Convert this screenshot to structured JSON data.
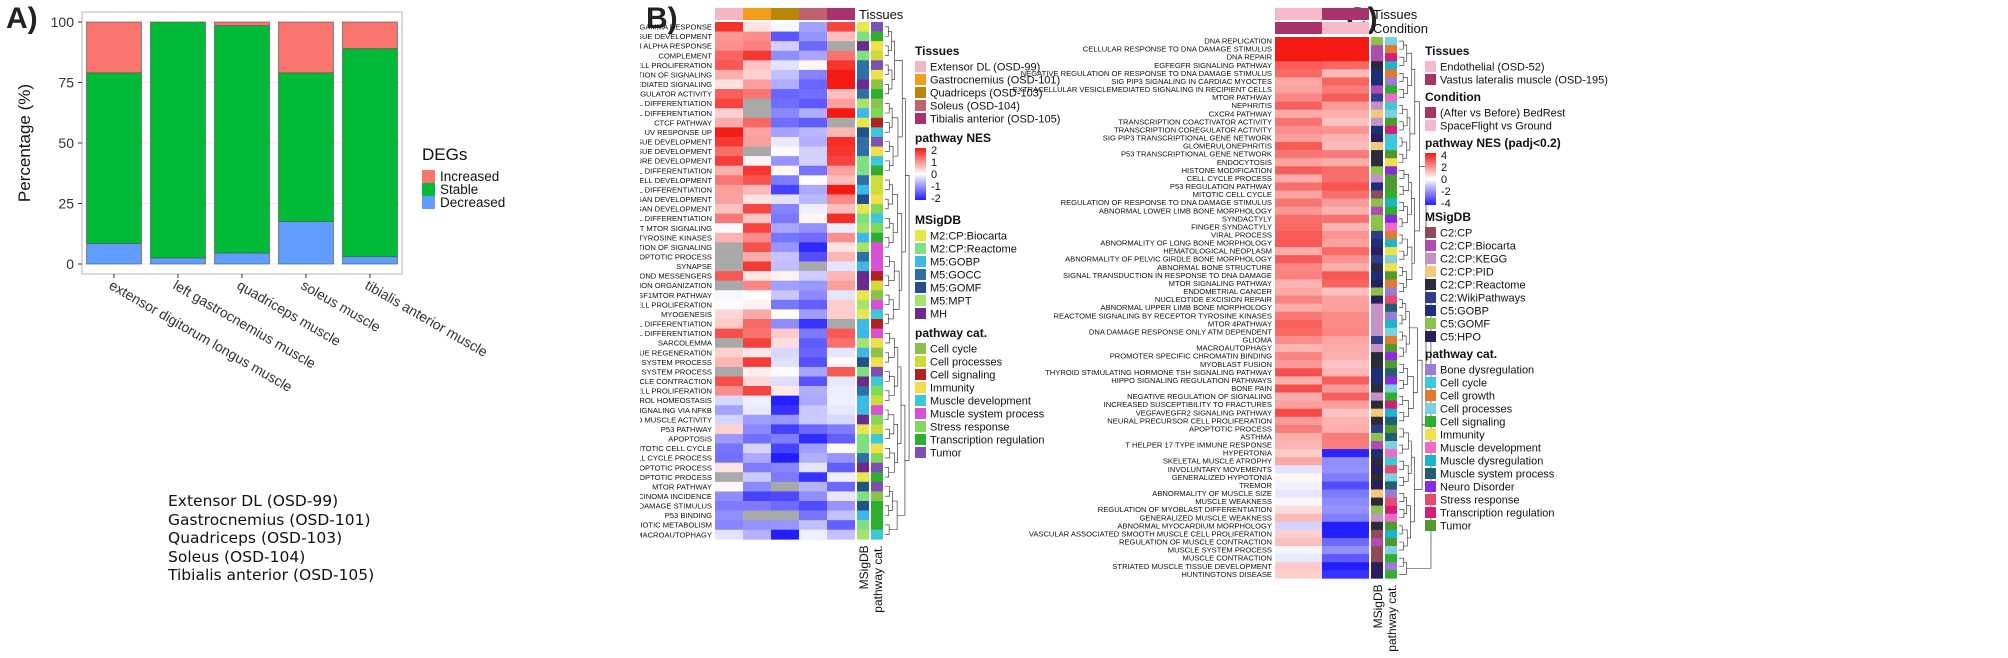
{
  "panels": {
    "a": "A)",
    "b": "B)",
    "c": "C)"
  },
  "colors": {
    "increased": "#F8766D",
    "stable": "#00BA38",
    "decreased": "#619CFF"
  },
  "chart_data": [
    {
      "type": "bar",
      "stacked": true,
      "ylabel": "Percentage (%)",
      "ylim": [
        0,
        100
      ],
      "yticks": [
        "0",
        "25",
        "50",
        "75",
        "100"
      ],
      "grid": true,
      "legend": {
        "title": "DEGs",
        "position": "right",
        "entries": [
          "Increased",
          "Stable",
          "Decreased"
        ]
      },
      "categories": [
        "extensor digitorum longus muscle",
        "left gastrocnemius muscle",
        "quadriceps muscle",
        "soleus muscle",
        "tibialis anterior muscle"
      ],
      "series": [
        {
          "name": "Decreased",
          "values": [
            8.5,
            2.5,
            4.5,
            17.5,
            3
          ]
        },
        {
          "name": "Stable",
          "values": [
            70.5,
            97.5,
            94,
            61.5,
            86
          ]
        },
        {
          "name": "Increased",
          "values": [
            21,
            0,
            1.5,
            21,
            11
          ]
        }
      ],
      "notes": [
        "Extensor DL (OSD-99)",
        "Gastrocnemius (OSD-101)",
        "Quadriceps (OSD-103)",
        "Soleus (OSD-104)",
        "Tibialis anterior (OSD-105)"
      ]
    },
    {
      "type": "heatmap",
      "annotation_label": "Tissues",
      "bottom_labels": [
        "MSigDB",
        "pathway cat."
      ],
      "rows": [
        "INTERFERON GAMMA RESPONSE",
        "REGULATION OF MUSCLE TISSUE DEVELOPMENT",
        "INTERFERON ALPHA RESPONSE",
        "COMPLEMENT",
        "VASCULAR ASSOCIATED SMOOTH MUSCLE CELL PROLIFERATION",
        "POSITIVE REGULATION OF SIGNALING",
        "CALCINEURIN MEDIATED SIGNALING",
        "TRANSCRIPTION COREGULATOR ACTIVITY",
        "REGULATION OF MUSCLE CELL DIFFERENTIATION",
        "REGULATION OF STRIATED MUSCLE CELL DIFFERENTIATION",
        "CTCF PATHWAY",
        "UV RESPONSE UP",
        "STRIATED MUSCLE TISSUE DEVELOPMENT",
        "MUSCLE TISSUE DEVELOPMENT",
        "MUSCLE STRUCTURE DEVELOPMENT",
        "MUSCLE CELL DIFFERENTIATION",
        "MUSCLE CELL DEVELOPMENT",
        "STRIATED MUSCLE CELL DIFFERENTIATION",
        "SKELETAL MUSCLE ORGAN DEVELOPMENT",
        "MUSCLE ORGAN DEVELOPMENT",
        "CARDIAC MUSCLE CELL DIFFERENTIATION",
        "PI3K AKT MTOR SIGNALING",
        "SIGNALING BY RECEPTOR TYROSINE KINASES",
        "NEGATIVE REGULATION OF SIGNALING",
        "APOPTOTIC PROCESS",
        "SYNAPSE",
        "INTRACELLULAR SIGNALING BY SECOND MESSENGERS",
        "MITOCHONDRION ORGANIZATION",
        "IGF1MTOR PATHWAY",
        "NEGATIVE REGULATION OF VASCULAR ASSOCIATED SMOOTH MUSCLE CELL PROLIFERATION",
        "MYOGENESIS",
        "POSITIVE REGULATION OF MUSCLE CELL DIFFERENTIATION",
        "POSITIVE REGULATION OF STRIATED MUSCLE CELL DIFFERENTIATION",
        "SARCOLEMMA",
        "SKELETAL MUSCLE TISSUE REGENERATION",
        "REGULATION OF MUSCLE SYSTEM PROCESS",
        "MUSCLE SYSTEM PROCESS",
        "MUSCLE CONTRACTION",
        "SMOOTH MUSCLE CELL PROLIFERATION",
        "CHOLESTEROL HOMEOSTASIS",
        "TNFA SIGNALING VIA NFKB",
        "RESPONSE TO MUSCLE ACTIVITY",
        "P53 PATHWAY",
        "APOPTOSIS",
        "MITOTIC CELL CYCLE",
        "CELL CYCLE PROCESS",
        "STRIATED MUSCLE CELL APOPTOTIC PROCESS",
        "MUSCLE CELL APOPTOTIC PROCESS",
        "MTOR PATHWAY",
        "MP INCREASED HEPATOCELLULAR CARCINOMA INCIDENCE",
        "POSITIVE REGULATION OF RESPONSE TO DNA DAMAGE STIMULUS",
        "P53 BINDING",
        "XENOBIOTIC METABOLISM",
        "MACROAUTOPHAGY"
      ],
      "legend": {
        "tissues_title": "Tissues",
        "tissues": [
          {
            "label": "Extensor DL (OSD-99)",
            "color": "#F4B6C2"
          },
          {
            "label": "Gastrocnemius (OSD-101)",
            "color": "#F29E1B"
          },
          {
            "label": "Quadriceps (OSD-103)",
            "color": "#B8860B"
          },
          {
            "label": "Soleus (OSD-104)",
            "color": "#C06070"
          },
          {
            "label": "Tibialis anterior (OSD-105)",
            "color": "#A8326A"
          }
        ],
        "nes_title": "pathway NES",
        "nes_ticks": [
          "2",
          "1",
          "0",
          "-1",
          "-2"
        ],
        "msigdb_title": "MSigDB",
        "msigdb": [
          {
            "label": "M2:CP:Biocarta",
            "color": "#E6E84A"
          },
          {
            "label": "M2:CP:Reactome",
            "color": "#7FE07F"
          },
          {
            "label": "M5:GOBP",
            "color": "#3DB9E8"
          },
          {
            "label": "M5:GOCC",
            "color": "#2F6FA8"
          },
          {
            "label": "M5:GOMF",
            "color": "#22508A"
          },
          {
            "label": "M5:MPT",
            "color": "#A6E36B"
          },
          {
            "label": "MH",
            "color": "#6B2A8E"
          }
        ],
        "cat_title": "pathway cat.",
        "cat": [
          {
            "label": "Cell cycle",
            "color": "#8BC34A"
          },
          {
            "label": "Cell processes",
            "color": "#CDDC39"
          },
          {
            "label": "Cell signaling",
            "color": "#B22222"
          },
          {
            "label": "Immunity",
            "color": "#F2E04B"
          },
          {
            "label": "Muscle development",
            "color": "#3CC8D6"
          },
          {
            "label": "Muscle system process",
            "color": "#D94FD6"
          },
          {
            "label": "Stress response",
            "color": "#7ED957"
          },
          {
            "label": "Transcription regulation",
            "color": "#2EAF2E"
          },
          {
            "label": "Tumor",
            "color": "#7E4FB5"
          }
        ]
      }
    },
    {
      "type": "heatmap",
      "annotation_labels": [
        "Tissues",
        "Condition"
      ],
      "bottom_labels": [
        "MSigDB",
        "pathway cat."
      ],
      "rows": [
        "DNA REPLICATION",
        "CELLULAR RESPONSE TO DNA DAMAGE STIMULUS",
        "DNA REPAIR",
        "EGFEGFR SIGNALING PATHWAY",
        "NEGATIVE REGULATION OF RESPONSE TO DNA DAMAGE STIMULUS",
        "SIG PIP3 SIGNALING IN CARDIAC MYOCTES",
        "EXTRACELLULAR VESICLEMEDIATED SIGNALING IN RECIPIENT CELLS",
        "MTOR PATHWAY",
        "NEPHRITIS",
        "CXCR4 PATHWAY",
        "TRANSCRIPTION COACTIVATOR ACTIVITY",
        "TRANSCRIPTION COREGULATOR ACTIVITY",
        "SIG PIP3 TRANSCRIPTIONAL GENE NETWORK",
        "GLOMERULONEPHRITIS",
        "P53 TRANSCRIPTIONAL GENE NETWORK",
        "ENDOCYTOSIS",
        "HISTONE MODIFICATION",
        "CELL CYCLE PROCESS",
        "P53 REGULATION PATHWAY",
        "MITOTIC CELL CYCLE",
        "REGULATION OF RESPONSE TO DNA DAMAGE STIMULUS",
        "ABNORMAL LOWER LIMB BONE MORPHOLOGY",
        "SYNDACTYLY",
        "FINGER SYNDACTYLY",
        "VIRAL PROCESS",
        "ABNORMALITY OF LONG BONE MORPHOLOGY",
        "HEMATOLOGICAL NEOPLASM",
        "ABNORMALITY OF PELVIC GIRDLE BONE MORPHOLOGY",
        "ABNORMAL BONE STRUCTURE",
        "SIGNAL TRANSDUCTION IN RESPONSE TO DNA DAMAGE",
        "MTOR SIGNALING PATHWAY",
        "ENDOMETRIAL CANCER",
        "NUCLEOTIDE EXCISION REPAIR",
        "ABNORMAL UPPER LIMB BONE MORPHOLOGY",
        "REACTOME SIGNALING BY RECEPTOR TYROSINE KINASES",
        "MTOR 4PATHWAY",
        "DNA DAMAGE RESPONSE ONLY ATM DEPENDENT",
        "GLIOMA",
        "MACROAUTOPHAGY",
        "PROMOTER SPECIFIC CHROMATIN BINDING",
        "MYOBLAST FUSION",
        "THYROID STIMULATING HORMONE TSH SIGNALING PATHWAY",
        "HIPPO SIGNALING REGULATION PATHWAYS",
        "BONE PAIN",
        "NEGATIVE REGULATION OF SIGNALING",
        "INCREASED SUSCEPTIBILITY TO FRACTURES",
        "VEGFAVEGFR2 SIGNALING PATHWAY",
        "NEURAL PRECURSOR CELL PROLIFERATION",
        "APOPTOTIC PROCESS",
        "ASTHMA",
        "T HELPER 17 TYPE IMMUNE RESPONSE",
        "HYPERTONIA",
        "SKELETAL MUSCLE ATROPHY",
        "INVOLUNTARY MOVEMENTS",
        "GENERALIZED HYPOTONIA",
        "TREMOR",
        "ABNORMALITY OF MUSCLE SIZE",
        "MUSCLE WEAKNESS",
        "REGULATION OF MYOBLAST DIFFERENTIATION",
        "GENERALIZED MUSCLE WEAKNESS",
        "ABNORMAL MYOCARDIUM MORPHOLOGY",
        "VASCULAR ASSOCIATED SMOOTH MUSCLE CELL PROLIFERATION",
        "REGULATION OF MUSCLE CONTRACTION",
        "MUSCLE SYSTEM PROCESS",
        "MUSCLE CONTRACTION",
        "STRIATED MUSCLE TISSUE DEVELOPMENT",
        "HUNTINGTONS DISEASE"
      ],
      "legend": {
        "tissues_title": "Tissues",
        "tissues": [
          {
            "label": "Endothelial (OSD-52)",
            "color": "#F6B9C9"
          },
          {
            "label": "Vastus lateralis muscle (OSD-195)",
            "color": "#A8326A"
          }
        ],
        "condition_title": "Condition",
        "condition": [
          {
            "label": "(After vs Before) BedRest",
            "color": "#A8326A"
          },
          {
            "label": "SpaceFlight vs Ground",
            "color": "#F6B9C9"
          }
        ],
        "nes_title": "pathway NES (padj<0.2)",
        "nes_ticks": [
          "4",
          "2",
          "0",
          "-2",
          "-4"
        ],
        "msigdb_title": "MSigDB",
        "msigdb": [
          {
            "label": "C2:CP",
            "color": "#8E4A5B"
          },
          {
            "label": "C2:CP:Biocarta",
            "color": "#B04CB0"
          },
          {
            "label": "C2:CP:KEGG",
            "color": "#C793C7"
          },
          {
            "label": "C2:CP:PID",
            "color": "#F5C97A"
          },
          {
            "label": "C2:CP:Reactome",
            "color": "#2B2B3A"
          },
          {
            "label": "C2:WikiPathways",
            "color": "#2E3E8A"
          },
          {
            "label": "C5:GOBP",
            "color": "#1E2F7A"
          },
          {
            "label": "C5:GOMF",
            "color": "#8BC34A"
          },
          {
            "label": "C5:HPO",
            "color": "#2A1E5C"
          }
        ],
        "cat_title": "pathway cat.",
        "cat": [
          {
            "label": "Bone dysregulation",
            "color": "#9A7BD8"
          },
          {
            "label": "Cell cycle",
            "color": "#3CC8D6"
          },
          {
            "label": "Cell growth",
            "color": "#E07A2E"
          },
          {
            "label": "Cell processes",
            "color": "#7ED0E0"
          },
          {
            "label": "Cell signaling",
            "color": "#2EAF2E"
          },
          {
            "label": "Immunity",
            "color": "#F2E04B"
          },
          {
            "label": "Muscle development",
            "color": "#F06AC8"
          },
          {
            "label": "Muscle dysregulation",
            "color": "#1FB5C8"
          },
          {
            "label": "Muscle system process",
            "color": "#1F5F6F"
          },
          {
            "label": "Neuro Disorder",
            "color": "#8A2BE2"
          },
          {
            "label": "Stress response",
            "color": "#E84A6E"
          },
          {
            "label": "Transcription regulation",
            "color": "#D0207A"
          },
          {
            "label": "Tumor",
            "color": "#4F9A2E"
          }
        ]
      }
    }
  ]
}
